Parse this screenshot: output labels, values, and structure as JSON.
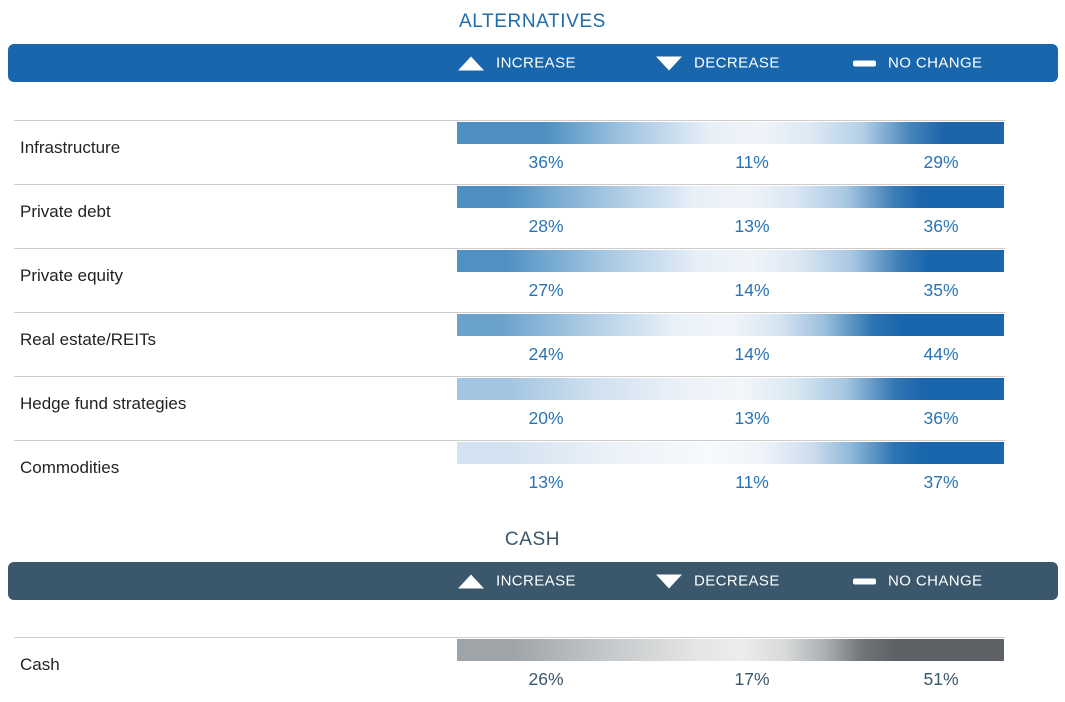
{
  "chart_data": {
    "type": "heatmap",
    "title": "",
    "sections": [
      {
        "title": "ALTERNATIVES",
        "categories": [
          "Infrastructure",
          "Private debt",
          "Private equity",
          "Real estate/REITs",
          "Hedge fund strategies",
          "Commodities"
        ]
      },
      {
        "title": "CASH",
        "categories": [
          "Cash"
        ]
      }
    ],
    "categories": [
      "Infrastructure",
      "Private debt",
      "Private equity",
      "Real estate/REITs",
      "Hedge fund strategies",
      "Commodities",
      "Cash"
    ],
    "series": [
      {
        "name": "Increase",
        "values": [
          36,
          28,
          27,
          24,
          20,
          13,
          26
        ]
      },
      {
        "name": "Decrease",
        "values": [
          11,
          13,
          14,
          14,
          13,
          11,
          17
        ]
      },
      {
        "name": "No change",
        "values": [
          29,
          36,
          35,
          44,
          36,
          37,
          51
        ]
      }
    ],
    "legend_position": "top",
    "grid": false,
    "value_unit": "%"
  },
  "sections": [
    {
      "title": "ALTERNATIVES",
      "theme": {
        "header_bg": "#1a66ad",
        "title_color": "#1c6caf",
        "value_color": "#2a73b5"
      },
      "legend": [
        {
          "icon": "triangle-up-icon",
          "label": "INCREASE"
        },
        {
          "icon": "triangle-down-icon",
          "label": "DECREASE"
        },
        {
          "icon": "dash-icon",
          "label": "NO CHANGE"
        }
      ],
      "rows": [
        {
          "label": "Infrastructure",
          "increase": "36%",
          "decrease": "11%",
          "no_change": "29%",
          "gradient": "#4d90c1 0%, #4d90c1 16%, #a3c5e1 31%, #e7eff7 46%, #f0f4f9 56%, #dbe8f3 65%, #b4d0e7 74%, #4584bb 83%, #1b65a8 89%, #1b65a8 100%"
        },
        {
          "label": "Private debt",
          "increase": "28%",
          "decrease": "13%",
          "no_change": "36%",
          "gradient": "#4d90c1 0%, #4d90c1 9%, #a3c5e1 27%, #e7eff7 43%, #f0f4f9 53%, #d9e6f2 62%, #a9c9e3 71%, #3b7db7 80%, #1a66ad 85%, #1a66ad 100%"
        },
        {
          "label": "Private equity",
          "increase": "27%",
          "decrease": "14%",
          "no_change": "35%",
          "gradient": "#4f91c2 0%, #4f91c2 9%, #a6c7e2 27%, #e7eff7 44%, #f0f4f9 54%, #d9e6f2 63%, #a9c9e3 72%, #3b7db7 81%, #1a66ad 86%, #1a66ad 100%"
        },
        {
          "label": "Real estate/REITs",
          "increase": "24%",
          "decrease": "14%",
          "no_change": "44%",
          "gradient": "#6ba2cc 0%, #6ba2cc 8%, #b3cfe6 25%, #e9f1f8 40%, #f1f5fa 50%, #d6e4f1 59%, #9cc0dd 67%, #2d74b1 76%, #1a66ad 81%, #1a66ad 100%"
        },
        {
          "label": "Hedge fund strategies",
          "increase": "20%",
          "decrease": "13%",
          "no_change": "36%",
          "gradient": "#a2c4e0 0%, #a2c4e0 9%, #cfe0ef 25%, #ebf1f8 41%, #f2f6fa 52%, #d9e7f2 62%, #a5c7e2 71%, #3377b3 80%, #1a66ad 85%, #1a66ad 100%"
        },
        {
          "label": "Commodities",
          "increase": "13%",
          "decrease": "11%",
          "no_change": "37%",
          "gradient": "#d3e2f0 0%, #d3e2f0 9%, #e9f0f7 26%, #f7fafc 46%, #eef3f9 56%, #cdddee 65%, #8fb8d9 72%, #2d74b1 80%, #1a66ad 85%, #1a66ad 100%"
        }
      ]
    },
    {
      "title": "CASH",
      "theme": {
        "header_bg": "#3a576b",
        "title_color": "#3a566b",
        "value_color": "#3a576b"
      },
      "legend": [
        {
          "icon": "triangle-up-icon",
          "label": "INCREASE"
        },
        {
          "icon": "triangle-down-icon",
          "label": "DECREASE"
        },
        {
          "icon": "dash-icon",
          "label": "NO CHANGE"
        }
      ],
      "rows": [
        {
          "label": "Cash",
          "increase": "26%",
          "decrease": "17%",
          "no_change": "51%",
          "gradient": "#9fa4a8 0%, #9fa4a8 10%, #c6c9cb 28%, #e4e5e6 44%, #ecedee 52%, #d7d9da 60%, #aeb2b5 67%, #717578 74%, #5e6266 80%, #5e6266 100%"
        }
      ]
    }
  ]
}
